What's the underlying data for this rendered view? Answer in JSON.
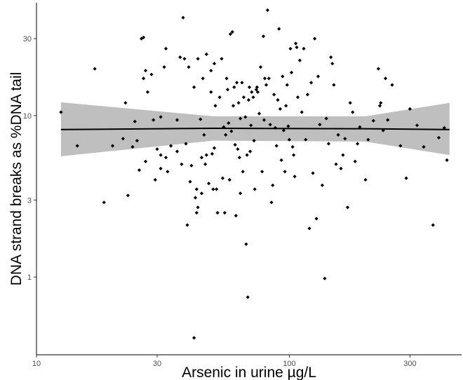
{
  "chart_data": {
    "type": "scatter",
    "title": "",
    "xlabel": "Arsenic in urine µg/L",
    "ylabel": "DNA strand breaks as %DNA tail",
    "x_scale": "log",
    "y_scale": "log",
    "xlim": [
      10,
      480
    ],
    "ylim": [
      0.33,
      50
    ],
    "x_ticks": [
      10,
      30,
      100,
      300
    ],
    "x_tick_labels": [
      "10",
      "30",
      "100",
      "300"
    ],
    "y_ticks": [
      1,
      3,
      10,
      30
    ],
    "y_tick_labels": [
      "1",
      "3",
      "10",
      "30"
    ],
    "grid": false,
    "legend": "none",
    "colors": {
      "points": "#000000",
      "fit_line": "#000000",
      "ribbon": "#bfbfbf"
    },
    "fit": {
      "x": [
        12.5,
        50,
        200,
        430
      ],
      "y": [
        8.2,
        8.35,
        8.3,
        8.2
      ],
      "ci_lower": [
        5.6,
        7.0,
        6.9,
        5.7
      ],
      "ci_upper": [
        12.1,
        9.9,
        9.9,
        12.0
      ]
    },
    "points": [
      {
        "x": 12.5,
        "y": 10.5
      },
      {
        "x": 14.5,
        "y": 6.5
      },
      {
        "x": 17,
        "y": 19.5
      },
      {
        "x": 18.5,
        "y": 2.9
      },
      {
        "x": 20,
        "y": 6.5
      },
      {
        "x": 22,
        "y": 7.2
      },
      {
        "x": 22.5,
        "y": 12
      },
      {
        "x": 23,
        "y": 3.2
      },
      {
        "x": 24,
        "y": 6.4
      },
      {
        "x": 24.5,
        "y": 9.2
      },
      {
        "x": 25,
        "y": 7
      },
      {
        "x": 25.5,
        "y": 4.6
      },
      {
        "x": 26,
        "y": 30
      },
      {
        "x": 26.5,
        "y": 30.5
      },
      {
        "x": 26.5,
        "y": 17
      },
      {
        "x": 27,
        "y": 19
      },
      {
        "x": 27.5,
        "y": 14
      },
      {
        "x": 27,
        "y": 5.2
      },
      {
        "x": 28.5,
        "y": 18
      },
      {
        "x": 29,
        "y": 9.4
      },
      {
        "x": 29.5,
        "y": 4
      },
      {
        "x": 30,
        "y": 6.2
      },
      {
        "x": 31,
        "y": 5.7
      },
      {
        "x": 31,
        "y": 9.8
      },
      {
        "x": 31,
        "y": 4.7
      },
      {
        "x": 32,
        "y": 20
      },
      {
        "x": 32.5,
        "y": 26
      },
      {
        "x": 32.5,
        "y": 5.5
      },
      {
        "x": 33,
        "y": 4.5
      },
      {
        "x": 34,
        "y": 6.5
      },
      {
        "x": 36,
        "y": 6
      },
      {
        "x": 36,
        "y": 9.4
      },
      {
        "x": 37,
        "y": 23
      },
      {
        "x": 37.5,
        "y": 5
      },
      {
        "x": 38,
        "y": 40.5
      },
      {
        "x": 38.5,
        "y": 22.5
      },
      {
        "x": 39,
        "y": 6.7
      },
      {
        "x": 39.5,
        "y": 2.1
      },
      {
        "x": 40,
        "y": 20
      },
      {
        "x": 40.5,
        "y": 3.9
      },
      {
        "x": 41,
        "y": 4.9
      },
      {
        "x": 42,
        "y": 0.42
      },
      {
        "x": 42,
        "y": 15
      },
      {
        "x": 42.5,
        "y": 3.1
      },
      {
        "x": 43,
        "y": 2.5
      },
      {
        "x": 43,
        "y": 3.5
      },
      {
        "x": 43.5,
        "y": 2.7
      },
      {
        "x": 43.5,
        "y": 22.5
      },
      {
        "x": 44.5,
        "y": 9.5
      },
      {
        "x": 45,
        "y": 5.5
      },
      {
        "x": 45,
        "y": 3.3
      },
      {
        "x": 45.5,
        "y": 17
      },
      {
        "x": 46,
        "y": 7.6
      },
      {
        "x": 46.5,
        "y": 5
      },
      {
        "x": 47,
        "y": 24
      },
      {
        "x": 47,
        "y": 5.7
      },
      {
        "x": 48,
        "y": 3.8
      },
      {
        "x": 49,
        "y": 19
      },
      {
        "x": 49,
        "y": 14
      },
      {
        "x": 49.5,
        "y": 5.8
      },
      {
        "x": 50,
        "y": 3.5
      },
      {
        "x": 50.5,
        "y": 21
      },
      {
        "x": 50.5,
        "y": 6.3
      },
      {
        "x": 51,
        "y": 11.5
      },
      {
        "x": 51.5,
        "y": 3.5
      },
      {
        "x": 52,
        "y": 2.5
      },
      {
        "x": 53,
        "y": 13
      },
      {
        "x": 54,
        "y": 22.5
      },
      {
        "x": 54.5,
        "y": 4.1
      },
      {
        "x": 55,
        "y": 8.5
      },
      {
        "x": 55.5,
        "y": 2.5
      },
      {
        "x": 56,
        "y": 7.6
      },
      {
        "x": 56.5,
        "y": 17
      },
      {
        "x": 57,
        "y": 14.5
      },
      {
        "x": 57.5,
        "y": 9
      },
      {
        "x": 58,
        "y": 4
      },
      {
        "x": 58.5,
        "y": 32
      },
      {
        "x": 59,
        "y": 8
      },
      {
        "x": 59.5,
        "y": 33
      },
      {
        "x": 60,
        "y": 11.5
      },
      {
        "x": 60.5,
        "y": 15
      },
      {
        "x": 61,
        "y": 6.6
      },
      {
        "x": 61.5,
        "y": 2.4
      },
      {
        "x": 62,
        "y": 16
      },
      {
        "x": 62.5,
        "y": 6.2
      },
      {
        "x": 63,
        "y": 12
      },
      {
        "x": 63.5,
        "y": 5.5
      },
      {
        "x": 64,
        "y": 9.6
      },
      {
        "x": 64,
        "y": 3.3
      },
      {
        "x": 65,
        "y": 16
      },
      {
        "x": 65.5,
        "y": 4.5
      },
      {
        "x": 66,
        "y": 13
      },
      {
        "x": 67,
        "y": 9.8
      },
      {
        "x": 67.5,
        "y": 1.6
      },
      {
        "x": 68,
        "y": 5.7
      },
      {
        "x": 68.5,
        "y": 0.75
      },
      {
        "x": 69,
        "y": 12.5
      },
      {
        "x": 69.5,
        "y": 15
      },
      {
        "x": 70,
        "y": 6
      },
      {
        "x": 70.5,
        "y": 8.7
      },
      {
        "x": 71,
        "y": 14
      },
      {
        "x": 72,
        "y": 13
      },
      {
        "x": 72.5,
        "y": 7
      },
      {
        "x": 73,
        "y": 3.5
      },
      {
        "x": 74,
        "y": 14.5
      },
      {
        "x": 74.5,
        "y": 15
      },
      {
        "x": 75,
        "y": 14
      },
      {
        "x": 76,
        "y": 10.3
      },
      {
        "x": 77,
        "y": 20
      },
      {
        "x": 78,
        "y": 4.5
      },
      {
        "x": 79,
        "y": 31
      },
      {
        "x": 79.5,
        "y": 9.4
      },
      {
        "x": 80,
        "y": 17
      },
      {
        "x": 81,
        "y": 15.5
      },
      {
        "x": 82,
        "y": 45
      },
      {
        "x": 83,
        "y": 17
      },
      {
        "x": 84,
        "y": 8.8
      },
      {
        "x": 85,
        "y": 2.9
      },
      {
        "x": 86,
        "y": 3.7
      },
      {
        "x": 87,
        "y": 13.5
      },
      {
        "x": 88,
        "y": 8.4
      },
      {
        "x": 89,
        "y": 6.5
      },
      {
        "x": 90,
        "y": 12.5
      },
      {
        "x": 91,
        "y": 34.5
      },
      {
        "x": 92,
        "y": 11
      },
      {
        "x": 93,
        "y": 5.3
      },
      {
        "x": 94,
        "y": 17.5
      },
      {
        "x": 95,
        "y": 8.1
      },
      {
        "x": 96,
        "y": 4.5
      },
      {
        "x": 97,
        "y": 11.5
      },
      {
        "x": 98,
        "y": 15.5
      },
      {
        "x": 99,
        "y": 8.6
      },
      {
        "x": 100,
        "y": 7.1
      },
      {
        "x": 101,
        "y": 26
      },
      {
        "x": 102,
        "y": 18.5
      },
      {
        "x": 103,
        "y": 6.4
      },
      {
        "x": 104,
        "y": 5.7
      },
      {
        "x": 105,
        "y": 4.2
      },
      {
        "x": 106,
        "y": 28
      },
      {
        "x": 107,
        "y": 26.5
      },
      {
        "x": 108,
        "y": 13
      },
      {
        "x": 110,
        "y": 22
      },
      {
        "x": 112,
        "y": 10.5
      },
      {
        "x": 114,
        "y": 26
      },
      {
        "x": 116,
        "y": 7.1
      },
      {
        "x": 118,
        "y": 13.5
      },
      {
        "x": 120,
        "y": 2
      },
      {
        "x": 122,
        "y": 16
      },
      {
        "x": 124,
        "y": 4.4
      },
      {
        "x": 126,
        "y": 30
      },
      {
        "x": 128,
        "y": 2.3
      },
      {
        "x": 130,
        "y": 17.5
      },
      {
        "x": 132,
        "y": 8.8
      },
      {
        "x": 135,
        "y": 3.7
      },
      {
        "x": 138,
        "y": 0.98
      },
      {
        "x": 140,
        "y": 9.6
      },
      {
        "x": 143,
        "y": 6.7
      },
      {
        "x": 146,
        "y": 23
      },
      {
        "x": 148,
        "y": 21
      },
      {
        "x": 150,
        "y": 15.5
      },
      {
        "x": 153,
        "y": 5
      },
      {
        "x": 156,
        "y": 7.6
      },
      {
        "x": 160,
        "y": 4.7
      },
      {
        "x": 163,
        "y": 5.7
      },
      {
        "x": 166,
        "y": 7.2
      },
      {
        "x": 170,
        "y": 2.7
      },
      {
        "x": 174,
        "y": 12
      },
      {
        "x": 178,
        "y": 10.5
      },
      {
        "x": 182,
        "y": 5.2
      },
      {
        "x": 186,
        "y": 6.7
      },
      {
        "x": 190,
        "y": 8.5
      },
      {
        "x": 200,
        "y": 4
      },
      {
        "x": 205,
        "y": 7.1
      },
      {
        "x": 215,
        "y": 9.3
      },
      {
        "x": 225,
        "y": 19.5
      },
      {
        "x": 228,
        "y": 11.5
      },
      {
        "x": 230,
        "y": 12
      },
      {
        "x": 235,
        "y": 8.1
      },
      {
        "x": 240,
        "y": 17
      },
      {
        "x": 245,
        "y": 9.4
      },
      {
        "x": 255,
        "y": 15.5
      },
      {
        "x": 275,
        "y": 6.5
      },
      {
        "x": 290,
        "y": 4.1
      },
      {
        "x": 300,
        "y": 11
      },
      {
        "x": 320,
        "y": 8.7
      },
      {
        "x": 340,
        "y": 6.4
      },
      {
        "x": 370,
        "y": 2.1
      },
      {
        "x": 390,
        "y": 7.3
      },
      {
        "x": 410,
        "y": 8.4
      },
      {
        "x": 420,
        "y": 5.3
      }
    ]
  }
}
